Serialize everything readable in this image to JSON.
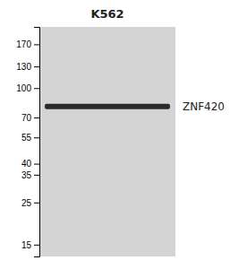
{
  "chart_data": {
    "type": "gel",
    "title": "K562",
    "log": "y",
    "series": [
      {
        "name": "ZNF420",
        "color": "#2a2a2a",
        "values": [
          80
        ]
      }
    ],
    "ylim": [
      13,
      210
    ],
    "yticks": [
      170,
      130,
      100,
      70,
      55,
      40,
      35,
      25,
      15
    ]
  }
}
